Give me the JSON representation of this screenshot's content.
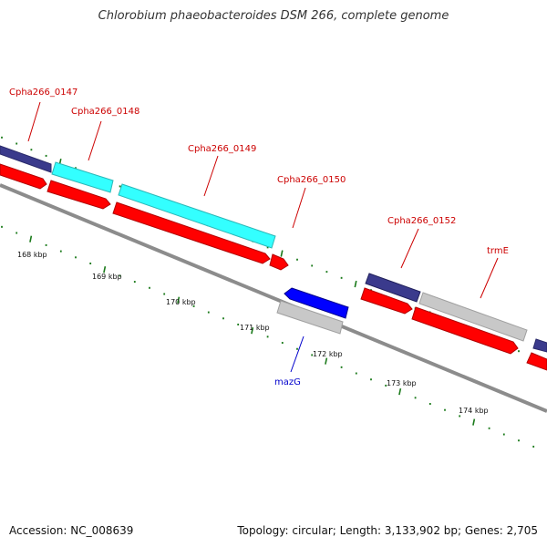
{
  "title": "Chlorobium phaeobacteroides DSM 266, complete genome",
  "footer": {
    "accession": "Accession: NC_008639",
    "summary": "Topology: circular; Length: 3,133,902 bp; Genes: 2,705"
  },
  "colors": {
    "backbone": "#8c8c8c",
    "tick": "#1a7a1a",
    "label_forward": "#cc0000",
    "label_reverse": "#0000cc",
    "red": "#ff0000",
    "cyan": "#33ffff",
    "grey": "#c8c8c8",
    "blue": "#0000ff",
    "navy": "#3a3a8c"
  },
  "scale_labels": [
    "168 kbp",
    "169 kbp",
    "170 kbp",
    "171 kbp",
    "172 kbp",
    "173 kbp",
    "174 kbp"
  ],
  "gene_labels": [
    {
      "text": "Cpha266_0147",
      "strand": "forward"
    },
    {
      "text": "Cpha266_0148",
      "strand": "forward"
    },
    {
      "text": "Cpha266_0149",
      "strand": "forward"
    },
    {
      "text": "Cpha266_0150",
      "strand": "forward"
    },
    {
      "text": "Cpha266_0152",
      "strand": "forward"
    },
    {
      "text": "trmE",
      "strand": "forward"
    },
    {
      "text": "mazG",
      "strand": "reverse"
    }
  ],
  "features": [
    {
      "name": "feature-navy-left",
      "color": "navy"
    },
    {
      "name": "feature-cpha266-0148",
      "color": "cyan"
    },
    {
      "name": "feature-cpha266-0149",
      "color": "cyan"
    },
    {
      "name": "feature-red-1",
      "color": "red"
    },
    {
      "name": "feature-red-2",
      "color": "red"
    },
    {
      "name": "feature-red-3",
      "color": "red"
    },
    {
      "name": "feature-red-small",
      "color": "red"
    },
    {
      "name": "feature-mazg",
      "color": "blue"
    },
    {
      "name": "feature-grey-mid",
      "color": "grey"
    },
    {
      "name": "feature-cpha266-0152",
      "color": "navy"
    },
    {
      "name": "feature-red-4",
      "color": "red"
    },
    {
      "name": "feature-trme",
      "color": "grey"
    },
    {
      "name": "feature-red-5",
      "color": "red"
    },
    {
      "name": "feature-red-right",
      "color": "red"
    },
    {
      "name": "feature-navy-right",
      "color": "navy"
    }
  ]
}
